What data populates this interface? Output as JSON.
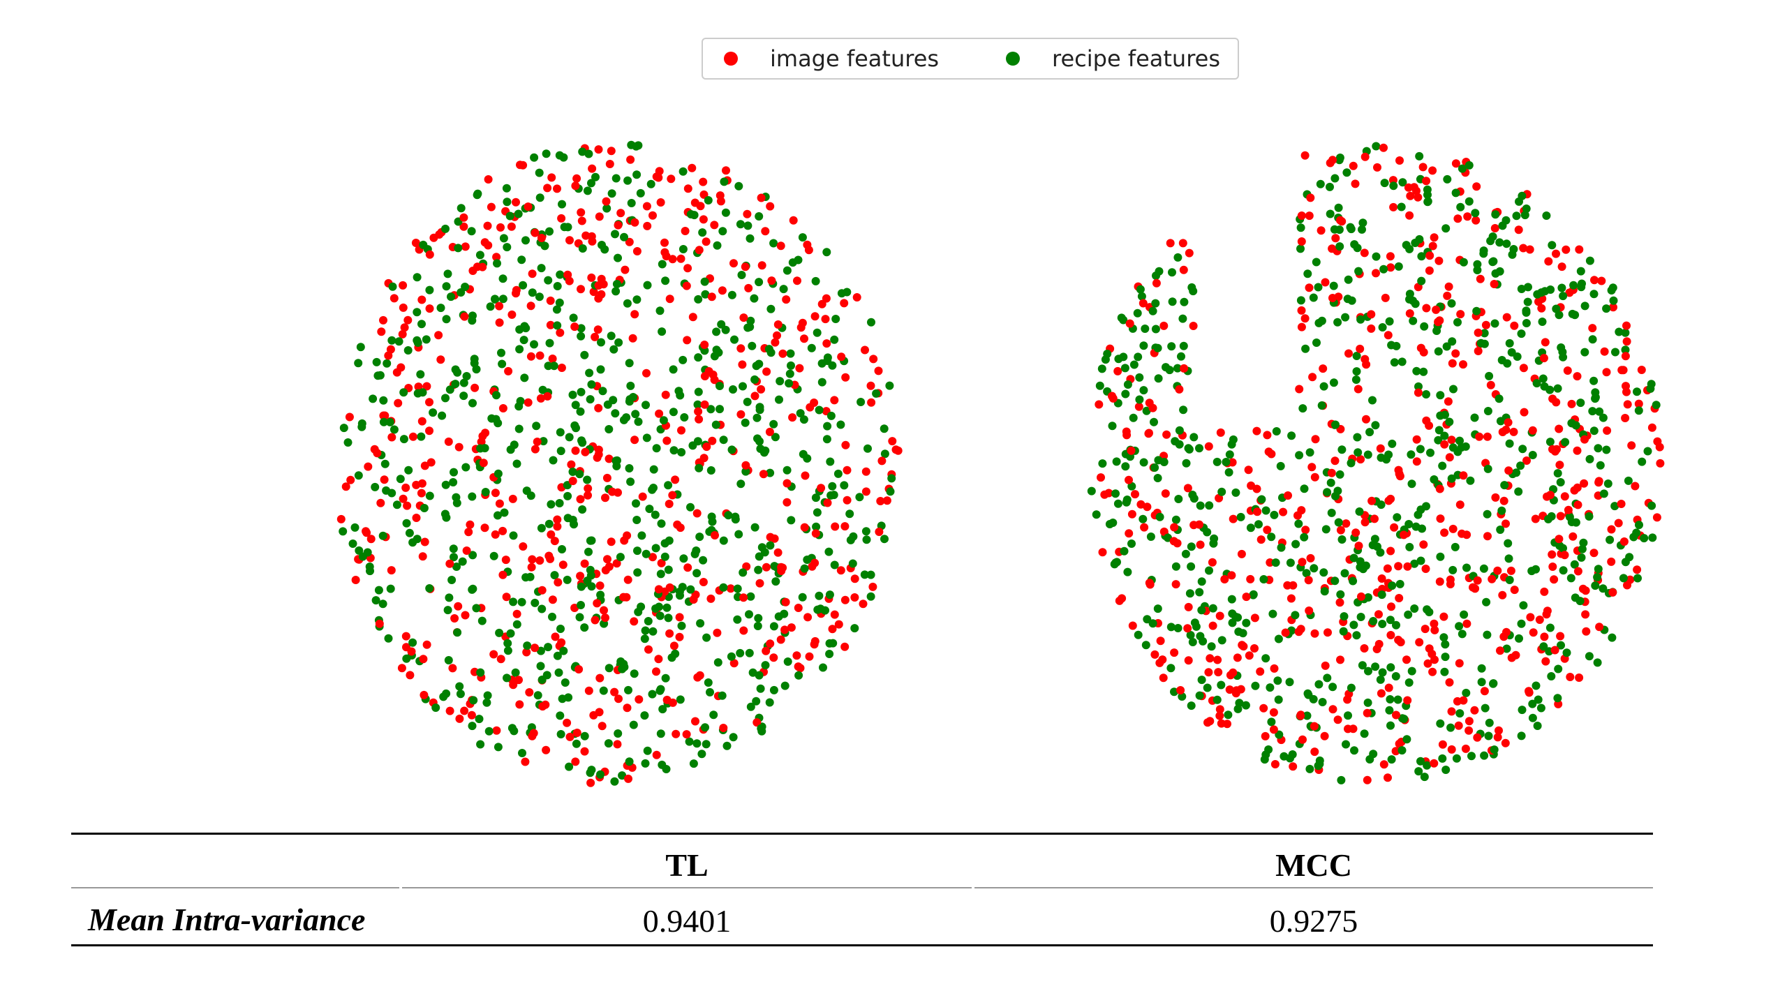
{
  "legend": [
    {
      "label": "image features",
      "color": "#ff0000"
    },
    {
      "label": "recipe features",
      "color": "#008000"
    }
  ],
  "chart_data": [
    {
      "type": "scatter",
      "name": "TL",
      "grid": false,
      "legend_placement": "top-center",
      "series": [
        {
          "name": "image features",
          "color": "#ff0000"
        },
        {
          "name": "recipe features",
          "color": "#008000"
        }
      ],
      "note_points": "approximately 1200 points per panel, evenly mixed colors, filling a roughly circular region"
    },
    {
      "type": "scatter",
      "name": "MCC",
      "grid": false,
      "legend_placement": "top-center",
      "series": [
        {
          "name": "image features",
          "color": "#ff0000"
        },
        {
          "name": "recipe features",
          "color": "#008000"
        }
      ]
    }
  ],
  "table": {
    "columns": [
      "",
      "TL",
      "MCC"
    ],
    "rows": [
      {
        "label": "Mean Intra-variance",
        "values": [
          "0.9401",
          "0.9275"
        ]
      }
    ]
  }
}
